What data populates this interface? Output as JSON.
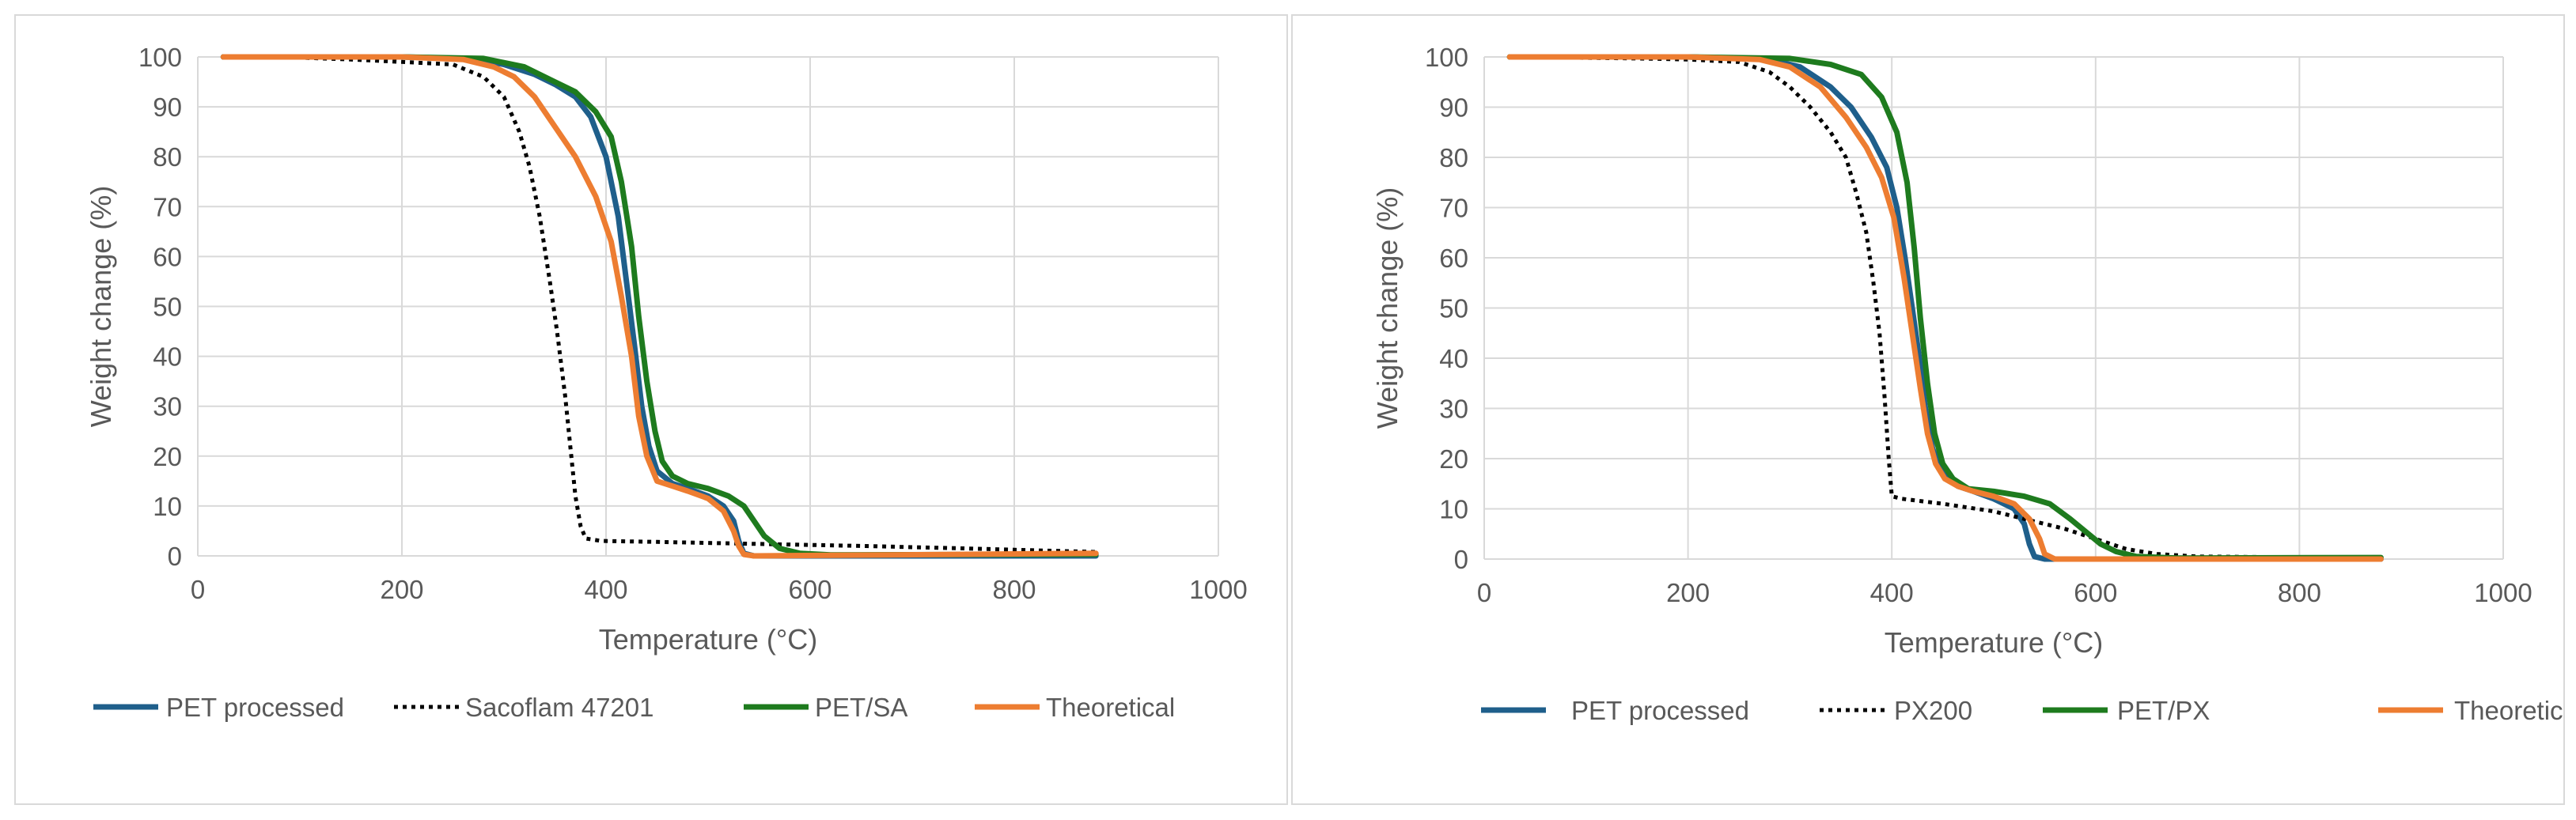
{
  "chart_data": [
    {
      "type": "line",
      "title": "",
      "xlabel": "Temperature (°C)",
      "ylabel": "Weight change (%)",
      "xlim": [
        0,
        1000
      ],
      "ylim": [
        0,
        100
      ],
      "xticks": [
        "0",
        "200",
        "400",
        "600",
        "800",
        "1000"
      ],
      "yticks": [
        "0",
        "10",
        "20",
        "30",
        "40",
        "50",
        "60",
        "70",
        "80",
        "90",
        "100"
      ],
      "grid": true,
      "legend_position": "bottom",
      "series": [
        {
          "name": "PET processed",
          "color": "#1f5f8b",
          "dash": "solid",
          "points": [
            [
              25,
              100
            ],
            [
              200,
              100
            ],
            [
              270,
              99.6
            ],
            [
              300,
              98.5
            ],
            [
              330,
              96.5
            ],
            [
              350,
              94.5
            ],
            [
              370,
              92
            ],
            [
              385,
              88
            ],
            [
              400,
              80
            ],
            [
              412,
              68
            ],
            [
              420,
              55
            ],
            [
              428,
              42
            ],
            [
              435,
              30
            ],
            [
              442,
              22
            ],
            [
              450,
              17
            ],
            [
              465,
              14.5
            ],
            [
              480,
              13.5
            ],
            [
              500,
              12
            ],
            [
              515,
              10
            ],
            [
              525,
              7
            ],
            [
              530,
              3
            ],
            [
              535,
              0.5
            ],
            [
              545,
              0
            ],
            [
              880,
              0
            ]
          ]
        },
        {
          "name": "Sacoflam 47201",
          "color": "#000000",
          "dash": "dotted",
          "points": [
            [
              80,
              100
            ],
            [
              150,
              99.5
            ],
            [
              200,
              99
            ],
            [
              250,
              98.5
            ],
            [
              280,
              96
            ],
            [
              300,
              92
            ],
            [
              315,
              85
            ],
            [
              325,
              78
            ],
            [
              335,
              68
            ],
            [
              345,
              55
            ],
            [
              352,
              45
            ],
            [
              360,
              32
            ],
            [
              365,
              22
            ],
            [
              370,
              12
            ],
            [
              375,
              6
            ],
            [
              380,
              3.5
            ],
            [
              395,
              3
            ],
            [
              450,
              2.8
            ],
            [
              550,
              2.4
            ],
            [
              650,
              2
            ],
            [
              750,
              1.5
            ],
            [
              880,
              0.8
            ]
          ]
        },
        {
          "name": "PET/SA",
          "color": "#1e7b1e",
          "dash": "solid",
          "points": [
            [
              25,
              100
            ],
            [
              200,
              100
            ],
            [
              280,
              99.7
            ],
            [
              320,
              98
            ],
            [
              350,
              95
            ],
            [
              370,
              93
            ],
            [
              390,
              89
            ],
            [
              405,
              84
            ],
            [
              415,
              75
            ],
            [
              425,
              62
            ],
            [
              432,
              48
            ],
            [
              440,
              35
            ],
            [
              448,
              25
            ],
            [
              455,
              19
            ],
            [
              465,
              16
            ],
            [
              480,
              14.5
            ],
            [
              500,
              13.5
            ],
            [
              520,
              12
            ],
            [
              535,
              10
            ],
            [
              545,
              7
            ],
            [
              555,
              4
            ],
            [
              570,
              1.5
            ],
            [
              590,
              0.5
            ],
            [
              620,
              0.2
            ],
            [
              880,
              0.3
            ]
          ]
        },
        {
          "name": "Theoretical",
          "color": "#ed7d31",
          "dash": "solid",
          "points": [
            [
              25,
              100
            ],
            [
              200,
              100
            ],
            [
              260,
              99.5
            ],
            [
              290,
              98
            ],
            [
              310,
              96
            ],
            [
              330,
              92
            ],
            [
              350,
              86
            ],
            [
              370,
              80
            ],
            [
              390,
              72
            ],
            [
              405,
              63
            ],
            [
              415,
              52
            ],
            [
              425,
              40
            ],
            [
              432,
              28
            ],
            [
              440,
              20
            ],
            [
              450,
              15
            ],
            [
              465,
              14
            ],
            [
              480,
              13
            ],
            [
              500,
              11.5
            ],
            [
              515,
              9
            ],
            [
              525,
              5
            ],
            [
              530,
              2
            ],
            [
              535,
              0.3
            ],
            [
              545,
              0
            ],
            [
              880,
              0.5
            ]
          ]
        }
      ]
    },
    {
      "type": "line",
      "title": "",
      "xlabel": "Temperature (°C)",
      "ylabel": "Weight change (%)",
      "xlim": [
        0,
        1000
      ],
      "ylim": [
        0,
        100
      ],
      "xticks": [
        "0",
        "200",
        "400",
        "600",
        "800",
        "1000"
      ],
      "yticks": [
        "0",
        "10",
        "20",
        "30",
        "40",
        "50",
        "60",
        "70",
        "80",
        "90",
        "100"
      ],
      "grid": true,
      "legend_position": "bottom",
      "series": [
        {
          "name": "PET processed",
          "color": "#1f5f8b",
          "dash": "solid",
          "points": [
            [
              25,
              100
            ],
            [
              200,
              100
            ],
            [
              280,
              99.5
            ],
            [
              310,
              98
            ],
            [
              340,
              94
            ],
            [
              360,
              90
            ],
            [
              380,
              84
            ],
            [
              395,
              78
            ],
            [
              405,
              70
            ],
            [
              413,
              60
            ],
            [
              420,
              50
            ],
            [
              427,
              40
            ],
            [
              433,
              30
            ],
            [
              440,
              22
            ],
            [
              450,
              17
            ],
            [
              465,
              14.5
            ],
            [
              480,
              13.5
            ],
            [
              500,
              12
            ],
            [
              520,
              10
            ],
            [
              530,
              7
            ],
            [
              535,
              3
            ],
            [
              540,
              0.5
            ],
            [
              550,
              0
            ],
            [
              880,
              0
            ]
          ]
        },
        {
          "name": "PX200",
          "color": "#000000",
          "dash": "dotted",
          "points": [
            [
              25,
              100
            ],
            [
              150,
              99.7
            ],
            [
              200,
              99.5
            ],
            [
              250,
              99
            ],
            [
              280,
              97
            ],
            [
              300,
              94
            ],
            [
              320,
              90
            ],
            [
              340,
              85
            ],
            [
              355,
              80
            ],
            [
              365,
              73
            ],
            [
              375,
              65
            ],
            [
              382,
              55
            ],
            [
              388,
              45
            ],
            [
              393,
              32
            ],
            [
              397,
              20
            ],
            [
              400,
              12.5
            ],
            [
              410,
              12
            ],
            [
              450,
              11
            ],
            [
              500,
              9.5
            ],
            [
              540,
              7.5
            ],
            [
              570,
              6
            ],
            [
              600,
              4
            ],
            [
              630,
              2
            ],
            [
              660,
              1
            ],
            [
              700,
              0.5
            ],
            [
              880,
              0.2
            ]
          ]
        },
        {
          "name": "PET/PX",
          "color": "#1e7b1e",
          "dash": "solid",
          "points": [
            [
              25,
              100
            ],
            [
              200,
              100
            ],
            [
              300,
              99.7
            ],
            [
              340,
              98.5
            ],
            [
              370,
              96.5
            ],
            [
              390,
              92
            ],
            [
              405,
              85
            ],
            [
              415,
              75
            ],
            [
              422,
              62
            ],
            [
              428,
              48
            ],
            [
              435,
              35
            ],
            [
              442,
              25
            ],
            [
              450,
              19
            ],
            [
              460,
              16
            ],
            [
              475,
              14
            ],
            [
              500,
              13.5
            ],
            [
              530,
              12.5
            ],
            [
              555,
              11
            ],
            [
              575,
              8
            ],
            [
              590,
              5.5
            ],
            [
              605,
              3
            ],
            [
              620,
              1.5
            ],
            [
              640,
              0.5
            ],
            [
              680,
              0.2
            ],
            [
              880,
              0.3
            ]
          ]
        },
        {
          "name": "Theoretical",
          "color": "#ed7d31",
          "dash": "solid",
          "points": [
            [
              25,
              100
            ],
            [
              200,
              100
            ],
            [
              270,
              99.5
            ],
            [
              300,
              98
            ],
            [
              330,
              94
            ],
            [
              355,
              88
            ],
            [
              375,
              82
            ],
            [
              390,
              76
            ],
            [
              402,
              68
            ],
            [
              412,
              56
            ],
            [
              420,
              45
            ],
            [
              428,
              34
            ],
            [
              435,
              25
            ],
            [
              443,
              19
            ],
            [
              452,
              16
            ],
            [
              465,
              14.5
            ],
            [
              480,
              13.5
            ],
            [
              500,
              12.5
            ],
            [
              520,
              11
            ],
            [
              535,
              8
            ],
            [
              545,
              4
            ],
            [
              550,
              1
            ],
            [
              560,
              0
            ],
            [
              880,
              0
            ]
          ]
        }
      ]
    }
  ]
}
